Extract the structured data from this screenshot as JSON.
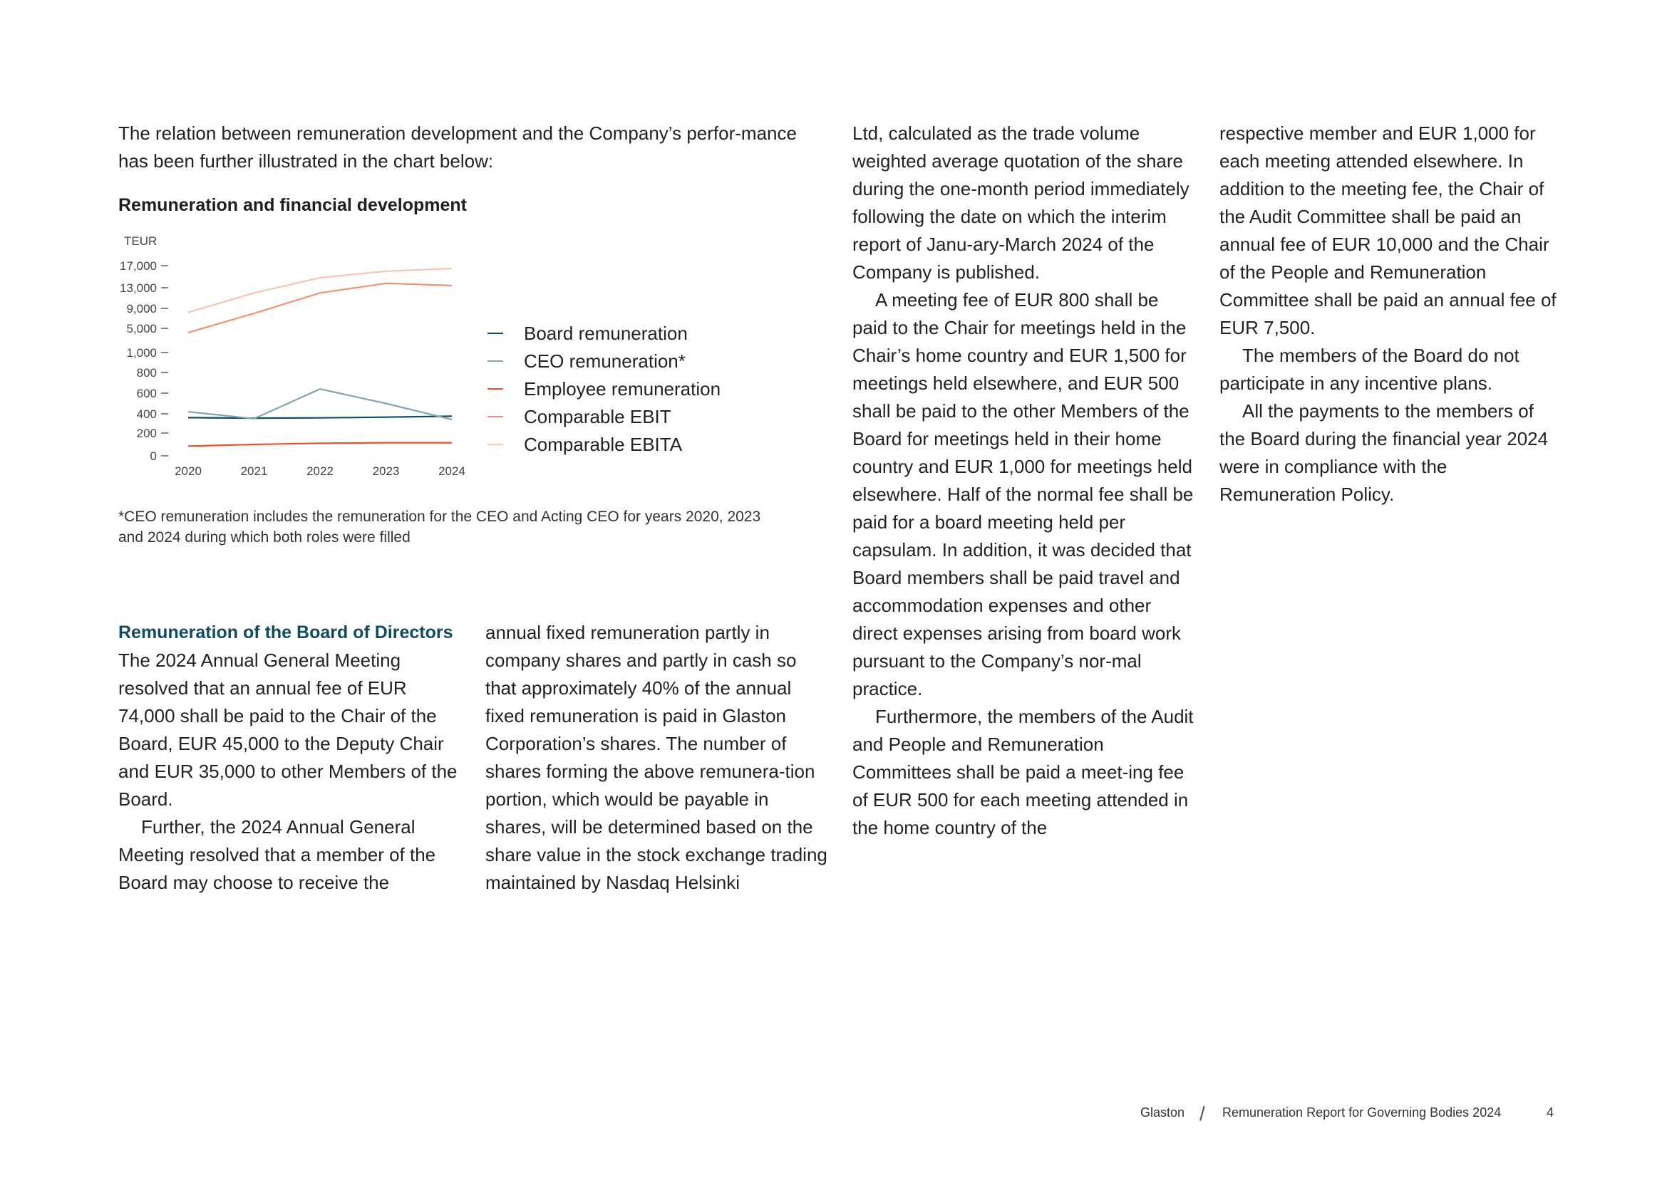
{
  "intro": "The relation between remuneration development and the Company’s perfor-mance has been further illustrated in the chart below:",
  "chart_data": {
    "type": "line",
    "title": "Remuneration and financial development",
    "ylabel": "TEUR",
    "x": [
      "2020",
      "2021",
      "2022",
      "2023",
      "2024"
    ],
    "y_ticks": [
      "17,000",
      "13,000",
      "9,000",
      "5,000",
      "1,000",
      "800",
      "600",
      "400",
      "200",
      "0"
    ],
    "y_tick_values": [
      17000,
      13000,
      9000,
      5000,
      1000,
      800,
      600,
      400,
      200,
      0
    ],
    "scale": "broken axis: 0–1,000 linear, 1,000–17,000 compressed",
    "grid": false,
    "legend_position": "right",
    "series": [
      {
        "name": "Board remuneration",
        "color": "#0f4c62",
        "values": [
          360,
          355,
          358,
          365,
          375
        ]
      },
      {
        "name": "CEO remuneration*",
        "color": "#7fa6b2",
        "values": [
          420,
          350,
          640,
          500,
          340
        ]
      },
      {
        "name": "Employee remuneration",
        "color": "#e4572e",
        "values": [
          85,
          100,
          110,
          115,
          115
        ]
      },
      {
        "name": "Comparable EBIT",
        "color": "#f09272",
        "values": [
          4300,
          8000,
          12000,
          13800,
          13400
        ]
      },
      {
        "name": "Comparable EBITA",
        "color": "#f7c6b0",
        "values": [
          8200,
          12000,
          14800,
          16000,
          16500
        ]
      }
    ]
  },
  "footnote": "*CEO remuneration includes the remuneration for the CEO and Acting CEO for years 2020, 2023 and 2024 during which both roles were filled",
  "section": {
    "heading": "Remuneration of the Board of Directors",
    "col1": [
      "The 2024 Annual General Meeting resolved that an annual fee of EUR 74,000 shall be paid to the Chair of the Board, EUR 45,000 to the Deputy Chair and EUR 35,000 to other Members of the Board.",
      "Further, the 2024 Annual General Meeting resolved that a member of the Board may choose to receive the"
    ],
    "col2": [
      "annual fixed remuneration partly in company shares and partly in cash so that approximately 40% of the annual fixed remuneration is paid in Glaston Corporation’s shares. The number of shares forming the above remunera-tion portion, which would be payable in shares, will be determined based on the share value in the stock exchange trading maintained by Nasdaq Helsinki"
    ]
  },
  "col3": [
    "Ltd, calculated as the trade volume weighted average quotation of the share during the one-month period immediately following the date on which the interim report of Janu-ary-March 2024 of the Company is published.",
    "A meeting fee of EUR 800 shall be paid to the Chair for meetings held in the Chair’s home country and EUR 1,500 for meetings held elsewhere, and EUR 500 shall be paid to the other Members of the Board for meetings held in their home country and EUR 1,000 for meetings held elsewhere. Half of the normal fee shall be paid for a board meeting held per capsulam. In addition, it was decided that Board members shall be paid travel and accommodation expenses and other direct expenses arising from board work pursuant to the Company’s nor-mal practice.",
    "Furthermore, the members of the Audit and People and Remuneration Committees shall be paid a meet-ing fee of EUR 500 for each meeting attended in the home country of the"
  ],
  "col4": [
    "respective member and EUR 1,000 for each meeting attended elsewhere. In addition to the meeting fee, the Chair of the Audit Committee shall be paid an annual fee of EUR 10,000 and the Chair of the People and Remuneration Committee shall be paid an annual fee of EUR 7,500.",
    "The members of the Board do not participate in any incentive plans.",
    "All the payments to the members of the Board during the financial year 2024 were in compliance with the Remuneration Policy."
  ],
  "footer": {
    "company": "Glaston",
    "separator": "/",
    "report": "Remuneration Report for Governing Bodies 2024",
    "page": "4"
  }
}
